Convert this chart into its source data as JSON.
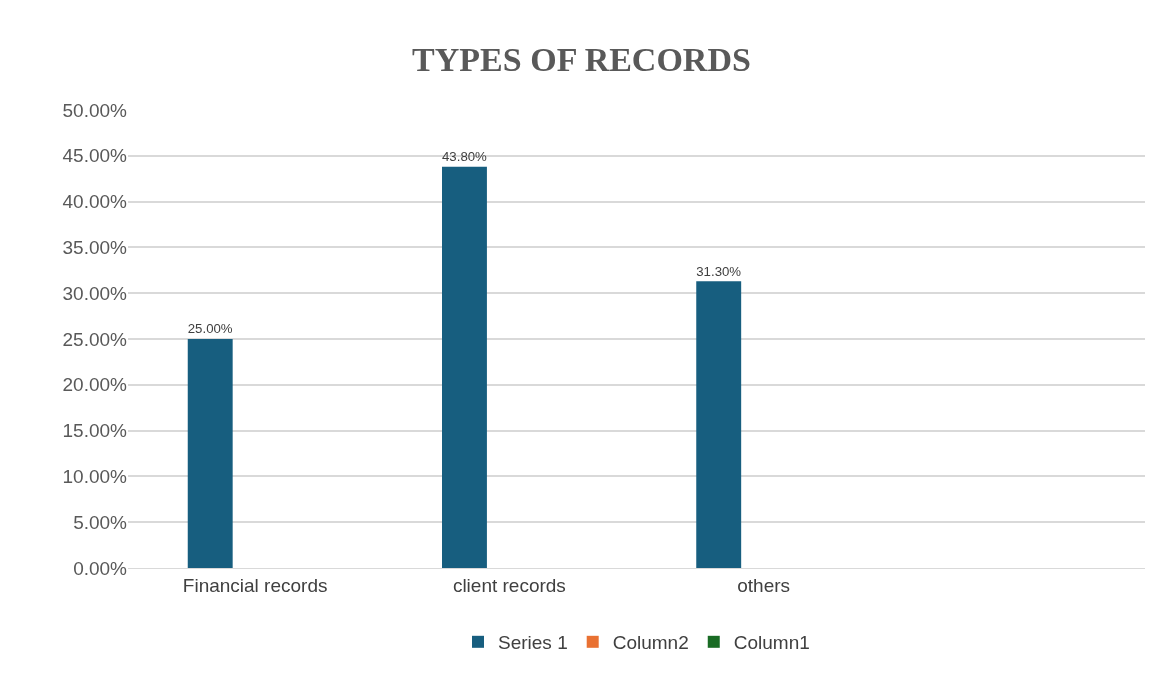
{
  "chart_data": {
    "type": "bar",
    "title": "TYPES OF RECORDS",
    "categories": [
      "Financial records",
      "client records",
      "others",
      null
    ],
    "series": [
      {
        "name": "Series 1",
        "color": "#175e7f",
        "values": [
          25,
          43.8,
          31.3,
          null
        ],
        "value_labels": [
          "25.00%",
          "43.80%",
          "31.30%",
          null
        ]
      },
      {
        "name": "Column2",
        "color": "#e97132",
        "values": [
          null,
          null,
          null,
          null
        ]
      },
      {
        "name": "Column1",
        "color": "#196b24",
        "values": [
          null,
          null,
          null,
          null
        ]
      }
    ],
    "ylim": [
      0,
      50
    ],
    "yticks": [
      {
        "value": 0,
        "label": "0.00%"
      },
      {
        "value": 5,
        "label": "5.00%"
      },
      {
        "value": 10,
        "label": "10.00%"
      },
      {
        "value": 15,
        "label": "15.00%"
      },
      {
        "value": 20,
        "label": "20.00%"
      },
      {
        "value": 25,
        "label": "25.00%"
      },
      {
        "value": 30,
        "label": "30.00%"
      },
      {
        "value": 35,
        "label": "35.00%"
      },
      {
        "value": 40,
        "label": "40.00%"
      },
      {
        "value": 45,
        "label": "45.00%"
      },
      {
        "value": 50,
        "label": "50.00%"
      }
    ],
    "grid": "y",
    "legend": "bottom"
  }
}
